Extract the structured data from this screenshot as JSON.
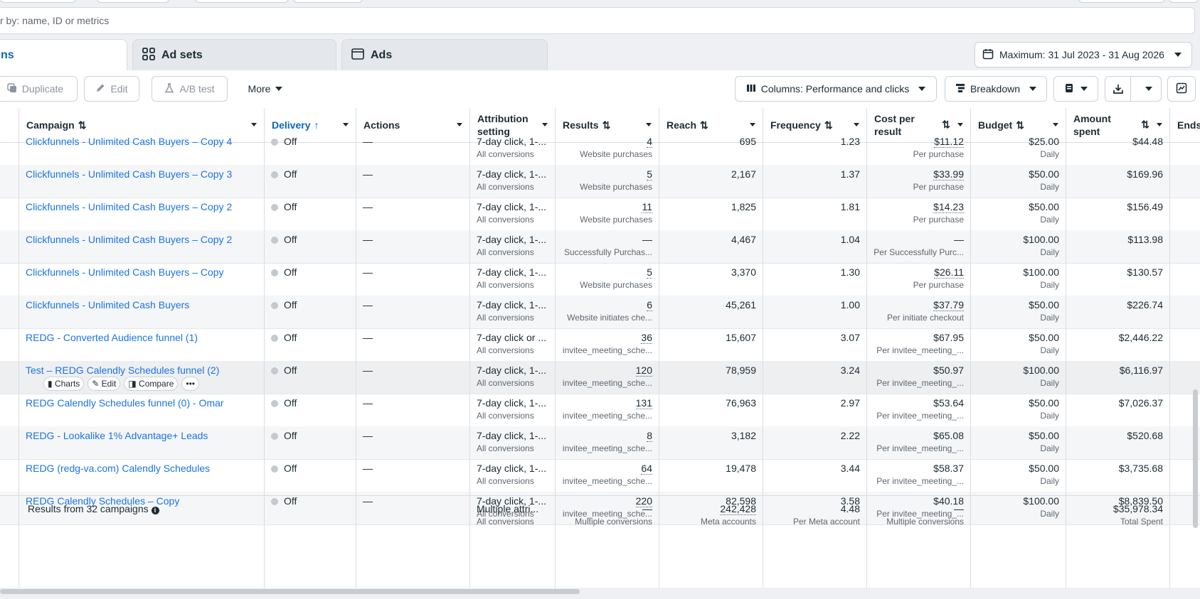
{
  "filter": {
    "placeholder": "r by: name, ID or metrics"
  },
  "tabs": [
    {
      "label": "ns",
      "icon": "folder-icon"
    },
    {
      "label": "Ad sets",
      "icon": "grid-icon"
    },
    {
      "label": "Ads",
      "icon": "ad-icon"
    }
  ],
  "date_range": {
    "label": "Maximum: 31 Jul 2023 - 31 Aug 2026"
  },
  "toolbar": {
    "duplicate": "Duplicate",
    "edit": "Edit",
    "ab_test": "A/B test",
    "more": "More",
    "columns": "Columns: Performance and clicks",
    "breakdown": "Breakdown"
  },
  "columns": {
    "campaign": "Campaign",
    "delivery": "Delivery",
    "actions": "Actions",
    "attribution": "Attribution setting",
    "results": "Results",
    "reach": "Reach",
    "frequency": "Frequency",
    "cost_per_result": "Cost per result",
    "budget": "Budget",
    "amount_spent": "Amount spent",
    "ends": "Ends"
  },
  "row_actions": {
    "charts": "Charts",
    "edit": "Edit",
    "compare": "Compare",
    "more": "•••"
  },
  "rows": [
    {
      "campaign": "Clickfunnels - Unlimited Cash Buyers – Copy 4",
      "delivery": "Off",
      "actions": "—",
      "attr": "7-day click, 1-...",
      "attr_sub": "All conversions",
      "results": "4",
      "results_sub": "Website purchases",
      "reach": "695",
      "frequency": "1.23",
      "cpr": "$11.12",
      "cpr_sub": "Per purchase",
      "budget": "$25.00",
      "budget_sub": "Daily",
      "spent": "$44.48"
    },
    {
      "campaign": "Clickfunnels - Unlimited Cash Buyers – Copy 3",
      "delivery": "Off",
      "actions": "—",
      "attr": "7-day click, 1-...",
      "attr_sub": "All conversions",
      "results": "5",
      "results_sub": "Website purchases",
      "reach": "2,167",
      "frequency": "1.37",
      "cpr": "$33.99",
      "cpr_sub": "Per purchase",
      "budget": "$50.00",
      "budget_sub": "Daily",
      "spent": "$169.96"
    },
    {
      "campaign": "Clickfunnels - Unlimited Cash Buyers – Copy 2",
      "delivery": "Off",
      "actions": "—",
      "attr": "7-day click, 1-...",
      "attr_sub": "All conversions",
      "results": "11",
      "results_sub": "Website purchases",
      "reach": "1,825",
      "frequency": "1.81",
      "cpr": "$14.23",
      "cpr_sub": "Per purchase",
      "budget": "$50.00",
      "budget_sub": "Daily",
      "spent": "$156.49"
    },
    {
      "campaign": "Clickfunnels - Unlimited Cash Buyers – Copy 2",
      "delivery": "Off",
      "actions": "—",
      "attr": "7-day click, 1-...",
      "attr_sub": "All conversions",
      "results": "—",
      "results_sub": "Successfully Purchas...",
      "reach": "4,467",
      "frequency": "1.04",
      "cpr": "—",
      "cpr_sub": "Per Successfully Purc...",
      "budget": "$100.00",
      "budget_sub": "Daily",
      "spent": "$113.98"
    },
    {
      "campaign": "Clickfunnels - Unlimited Cash Buyers – Copy",
      "delivery": "Off",
      "actions": "—",
      "attr": "7-day click, 1-...",
      "attr_sub": "All conversions",
      "results": "5",
      "results_sub": "Website purchases",
      "reach": "3,370",
      "frequency": "1.30",
      "cpr": "$26.11",
      "cpr_sub": "Per purchase",
      "budget": "$100.00",
      "budget_sub": "Daily",
      "spent": "$130.57"
    },
    {
      "campaign": "Clickfunnels - Unlimited Cash Buyers",
      "delivery": "Off",
      "actions": "—",
      "attr": "7-day click, 1-...",
      "attr_sub": "All conversions",
      "results": "6",
      "results_sub": "Website initiates che...",
      "reach": "45,261",
      "frequency": "1.00",
      "cpr": "$37.79",
      "cpr_sub": "Per initiate checkout",
      "budget": "$50.00",
      "budget_sub": "Daily",
      "spent": "$226.74"
    },
    {
      "campaign": "REDG - Converted Audience funnel (1)",
      "delivery": "Off",
      "actions": "—",
      "attr": "7-day click or ...",
      "attr_sub": "All conversions",
      "results": "36",
      "results_sub": "invitee_meeting_sche...",
      "reach": "15,607",
      "frequency": "3.07",
      "cpr": "$67.95",
      "cpr_sub": "Per invitee_meeting_...",
      "budget": "$50.00",
      "budget_sub": "Daily",
      "spent": "$2,446.22"
    },
    {
      "campaign": "Test – REDG Calendly Schedules funnel (2)",
      "delivery": "Off",
      "actions": "—",
      "attr": "7-day click, 1-...",
      "attr_sub": "All conversions",
      "results": "120",
      "results_sub": "invitee_meeting_sche...",
      "reach": "78,959",
      "frequency": "3.24",
      "cpr": "$50.97",
      "cpr_sub": "Per invitee_meeting_...",
      "budget": "$100.00",
      "budget_sub": "Daily",
      "spent": "$6,116.97"
    },
    {
      "campaign": "REDG Calendly Schedules funnel (0) - Omar",
      "delivery": "Off",
      "actions": "—",
      "attr": "7-day click, 1-...",
      "attr_sub": "All conversions",
      "results": "131",
      "results_sub": "invitee_meeting_sche...",
      "reach": "76,963",
      "frequency": "2.97",
      "cpr": "$53.64",
      "cpr_sub": "Per invitee_meeting_...",
      "budget": "$50.00",
      "budget_sub": "Daily",
      "spent": "$7,026.37"
    },
    {
      "campaign": "REDG - Lookalike 1% Advantage+ Leads",
      "delivery": "Off",
      "actions": "—",
      "attr": "7-day click, 1-...",
      "attr_sub": "All conversions",
      "results": "8",
      "results_sub": "invitee_meeting_sche...",
      "reach": "3,182",
      "frequency": "2.22",
      "cpr": "$65.08",
      "cpr_sub": "Per invitee_meeting_...",
      "budget": "$50.00",
      "budget_sub": "Daily",
      "spent": "$520.68"
    },
    {
      "campaign": "REDG (redg-va.com) Calendly Schedules",
      "delivery": "Off",
      "actions": "—",
      "attr": "7-day click, 1-...",
      "attr_sub": "All conversions",
      "results": "64",
      "results_sub": "invitee_meeting_sche...",
      "reach": "19,478",
      "frequency": "3.44",
      "cpr": "$58.37",
      "cpr_sub": "Per invitee_meeting_...",
      "budget": "$50.00",
      "budget_sub": "Daily",
      "spent": "$3,735.68"
    },
    {
      "campaign": "REDG Calendly Schedules – Copy",
      "delivery": "Off",
      "actions": "—",
      "attr": "7-day click, 1-...",
      "attr_sub": "All conversions",
      "results": "220",
      "results_sub": "invitee_meeting_sche...",
      "reach": "82,598",
      "frequency": "3.58",
      "cpr": "$40.18",
      "cpr_sub": "Per invitee_meeting_...",
      "budget": "$100.00",
      "budget_sub": "Daily",
      "spent": "$8,839.50"
    }
  ],
  "summary": {
    "label": "Results from 32 campaigns",
    "attr": "Multiple attri...",
    "attr_sub": "All conversions",
    "results": "—",
    "results_sub": "Multiple conversions",
    "reach": "242,428",
    "reach_sub": "Meta accounts",
    "frequency": "4.48",
    "frequency_sub": "Per Meta account",
    "cpr": "—",
    "cpr_sub": "Multiple conversions",
    "spent": "$35,978.34",
    "spent_sub": "Total Spent"
  }
}
